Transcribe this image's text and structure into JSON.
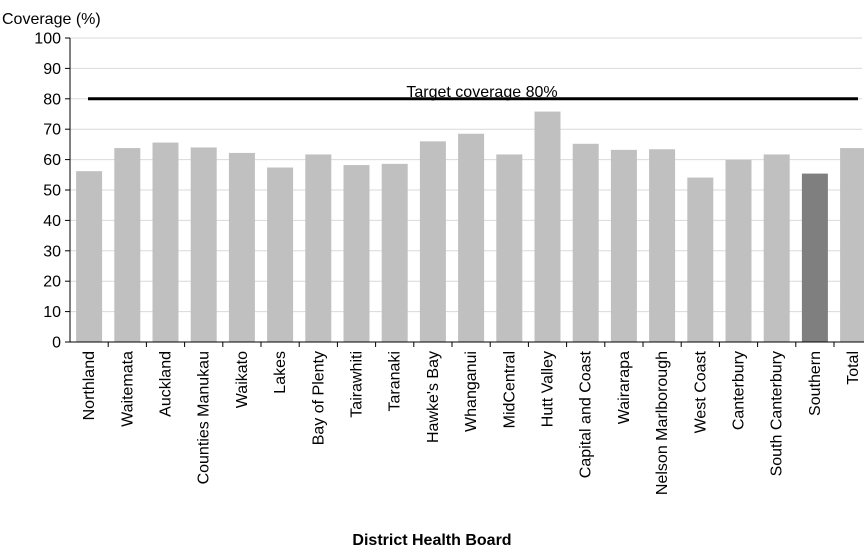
{
  "chart_data": {
    "type": "bar",
    "title": "",
    "ylabel": "Coverage (%)",
    "xlabel": "District Health Board",
    "ylim": [
      0,
      100
    ],
    "yticks": [
      0,
      10,
      20,
      30,
      40,
      50,
      60,
      70,
      80,
      90,
      100
    ],
    "grid": true,
    "categories": [
      "Northland",
      "Waitemata",
      "Auckland",
      "Counties Manukau",
      "Waikato",
      "Lakes",
      "Bay of Plenty",
      "Tairawhiti",
      "Taranaki",
      "Hawke's Bay",
      "Whanganui",
      "MidCentral",
      "Hutt Valley",
      "Capital and Coast",
      "Wairarapa",
      "Nelson Marlborough",
      "West Coast",
      "Canterbury",
      "South Canterbury",
      "Southern",
      "Total"
    ],
    "values": [
      56.2,
      63.8,
      65.6,
      64.0,
      62.2,
      57.4,
      61.7,
      58.2,
      58.6,
      66.0,
      68.5,
      61.7,
      75.8,
      65.2,
      63.2,
      63.4,
      54.1,
      59.9,
      61.7,
      55.4,
      63.8
    ],
    "highlight_category": "Southern",
    "colors": {
      "bar": "#c0c0c0",
      "highlight": "#7f7f7f",
      "target_line": "#000000",
      "grid": "#d9d9d9"
    },
    "target": {
      "value": 80,
      "label": "Target coverage 80%"
    }
  }
}
